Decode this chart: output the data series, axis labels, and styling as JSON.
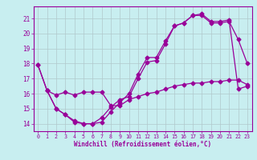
{
  "xlabel": "Windchill (Refroidissement éolien,°C)",
  "background_color": "#c8eef0",
  "line_color": "#990099",
  "grid_color": "#b0c8cc",
  "xlim": [
    -0.5,
    23.5
  ],
  "ylim": [
    13.5,
    21.8
  ],
  "yticks": [
    14,
    15,
    16,
    17,
    18,
    19,
    20,
    21
  ],
  "xticks": [
    0,
    1,
    2,
    3,
    4,
    5,
    6,
    7,
    8,
    9,
    10,
    11,
    12,
    13,
    14,
    15,
    16,
    17,
    18,
    19,
    20,
    21,
    22,
    23
  ],
  "series1_x": [
    0,
    1,
    2,
    3,
    4,
    5,
    6,
    7,
    8,
    9,
    10,
    11,
    12,
    13,
    14,
    15,
    16,
    17,
    18,
    19,
    20,
    21,
    22,
    23
  ],
  "series1_y": [
    17.9,
    16.2,
    15.0,
    14.6,
    14.1,
    14.0,
    14.0,
    14.4,
    15.1,
    15.6,
    15.8,
    17.0,
    18.1,
    18.2,
    19.3,
    20.5,
    20.7,
    21.2,
    21.2,
    20.7,
    20.7,
    20.8,
    19.6,
    18.0
  ],
  "series2_x": [
    0,
    1,
    2,
    3,
    4,
    5,
    6,
    7,
    8,
    9,
    10,
    11,
    12,
    13,
    14,
    15,
    16,
    17,
    18,
    19,
    20,
    21,
    22,
    23
  ],
  "series2_y": [
    17.9,
    16.2,
    15.0,
    14.6,
    14.2,
    14.0,
    14.0,
    14.1,
    14.8,
    15.4,
    16.0,
    17.3,
    18.4,
    18.4,
    19.5,
    20.5,
    20.7,
    21.2,
    21.3,
    20.8,
    20.8,
    20.9,
    16.3,
    16.5
  ],
  "series3_x": [
    1,
    2,
    3,
    4,
    5,
    6,
    7,
    8,
    9,
    10,
    11,
    12,
    13,
    14,
    15,
    16,
    17,
    18,
    19,
    20,
    21,
    22,
    23
  ],
  "series3_y": [
    16.2,
    15.9,
    16.1,
    15.9,
    16.1,
    16.1,
    16.1,
    15.2,
    15.2,
    15.6,
    15.8,
    16.0,
    16.1,
    16.3,
    16.5,
    16.6,
    16.7,
    16.7,
    16.8,
    16.8,
    16.9,
    16.9,
    16.6
  ]
}
